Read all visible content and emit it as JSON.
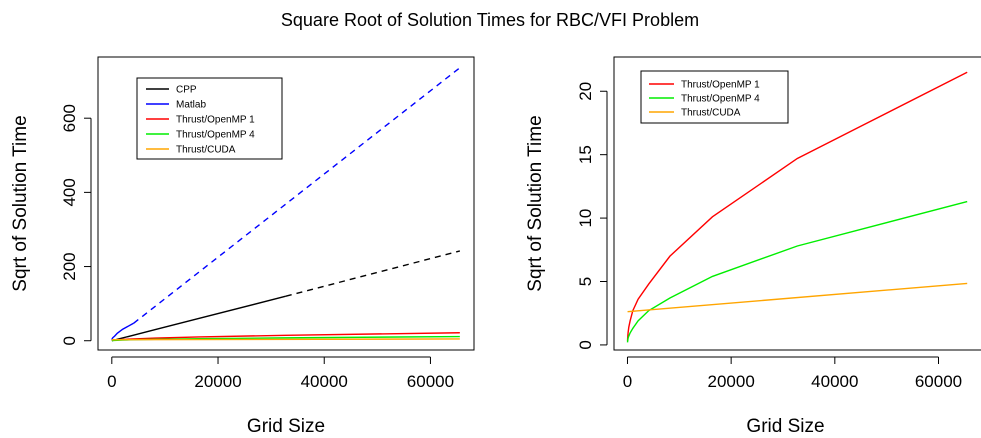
{
  "figure": {
    "title": "Square Root of Solution Times for RBC/VFI Problem"
  },
  "chart_data": [
    {
      "type": "line",
      "xlabel": "Grid Size",
      "ylabel": "Sqrt of Solution Time",
      "xlim": [
        -2600,
        68200
      ],
      "ylim": [
        -25,
        765
      ],
      "xticks": [
        0,
        20000,
        40000,
        60000
      ],
      "yticks": [
        0,
        200,
        400,
        600
      ],
      "xtick_labels": [
        "0",
        "20000",
        "40000",
        "60000"
      ],
      "ytick_labels": [
        "0",
        "200",
        "400",
        "600"
      ],
      "grid": false,
      "legend_position": "top-left",
      "series": [
        {
          "name": "CPP",
          "color": "#000000",
          "solid": {
            "x": [
              16,
              32,
              64,
              128,
              256,
              512,
              1024,
              2048,
              4096,
              8192,
              16384,
              32768
            ],
            "y": [
              0.1,
              0.12,
              0.2,
              0.4,
              0.9,
              1.8,
              3.7,
              7.5,
              15,
              30,
              60,
              120
            ]
          },
          "dashed": {
            "x": [
              32768,
              65536
            ],
            "y": [
              120,
              242
            ]
          }
        },
        {
          "name": "Matlab",
          "color": "#0000ff",
          "solid": {
            "x": [
              16,
              32,
              64,
              128,
              256,
              512,
              1024,
              2048,
              4096
            ],
            "y": [
              3,
              4,
              5,
              7,
              9,
              12,
              20,
              31,
              47
            ]
          },
          "dashed": {
            "x": [
              4096,
              65536
            ],
            "y": [
              47,
              736
            ]
          }
        },
        {
          "name": "Thrust/OpenMP 1",
          "color": "#ff0000",
          "solid": {
            "x": [
              16,
              32,
              64,
              128,
              256,
              512,
              1024,
              2048,
              4096,
              8192,
              16384,
              32768,
              65536
            ],
            "y": [
              0.3,
              0.5,
              0.7,
              1.0,
              1.4,
              1.9,
              2.7,
              3.6,
              4.8,
              7.0,
              10.1,
              14.7,
              21.5
            ]
          }
        },
        {
          "name": "Thrust/OpenMP 4",
          "color": "#00ee00",
          "solid": {
            "x": [
              16,
              32,
              64,
              128,
              256,
              512,
              1024,
              2048,
              4096,
              8192,
              16384,
              32768,
              65536
            ],
            "y": [
              0.2,
              0.3,
              0.4,
              0.55,
              0.7,
              0.95,
              1.3,
              1.9,
              2.7,
              3.7,
              5.4,
              7.8,
              11.3
            ]
          }
        },
        {
          "name": "Thrust/CUDA",
          "color": "#ffa500",
          "solid": {
            "x": [
              16,
              65536
            ],
            "y": [
              2.62,
              4.85
            ]
          }
        }
      ]
    },
    {
      "type": "line",
      "xlabel": "Grid Size",
      "ylabel": "Sqrt of Solution Time",
      "xlim": [
        -2600,
        68200
      ],
      "ylim": [
        -0.4,
        22.7
      ],
      "xticks": [
        0,
        20000,
        40000,
        60000
      ],
      "yticks": [
        0,
        5,
        10,
        15,
        20
      ],
      "xtick_labels": [
        "0",
        "20000",
        "40000",
        "60000"
      ],
      "ytick_labels": [
        "0",
        "5",
        "10",
        "15",
        "20"
      ],
      "grid": false,
      "legend_position": "top-left",
      "series": [
        {
          "name": "Thrust/OpenMP 1",
          "color": "#ff0000",
          "solid": {
            "x": [
              16,
              32,
              64,
              128,
              256,
              512,
              1024,
              2048,
              4096,
              8192,
              16384,
              32768,
              65536
            ],
            "y": [
              0.3,
              0.5,
              0.7,
              1.0,
              1.4,
              1.9,
              2.7,
              3.6,
              4.8,
              7.0,
              10.1,
              14.7,
              21.5
            ]
          }
        },
        {
          "name": "Thrust/OpenMP 4",
          "color": "#00ee00",
          "solid": {
            "x": [
              16,
              32,
              64,
              128,
              256,
              512,
              1024,
              2048,
              4096,
              8192,
              16384,
              32768,
              65536
            ],
            "y": [
              0.2,
              0.3,
              0.4,
              0.55,
              0.7,
              0.95,
              1.3,
              1.9,
              2.7,
              3.7,
              5.4,
              7.8,
              11.3
            ]
          }
        },
        {
          "name": "Thrust/CUDA",
          "color": "#ffa500",
          "solid": {
            "x": [
              16,
              65536
            ],
            "y": [
              2.62,
              4.85
            ]
          }
        }
      ]
    }
  ]
}
